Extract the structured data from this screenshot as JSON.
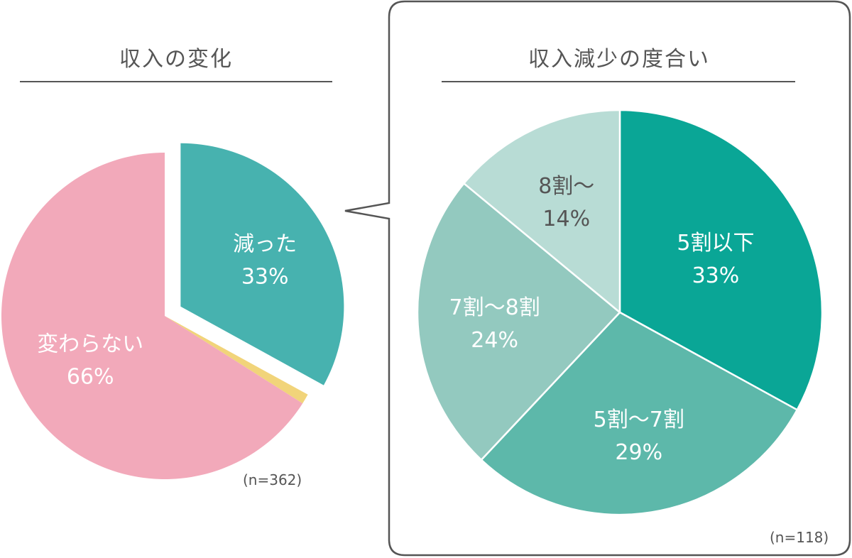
{
  "chart_data": [
    {
      "type": "pie",
      "title": "収入の変化",
      "note": "(n=362)",
      "slices": [
        {
          "name": "減った",
          "value": 33,
          "value_label": "33%",
          "color": "#47b2af",
          "exploded": true
        },
        {
          "name": "",
          "value": 1,
          "value_label": "",
          "color": "#f1d47a",
          "exploded": false
        },
        {
          "name": "変わらない",
          "value": 66,
          "value_label": "66%",
          "color": "#f2a9ba",
          "exploded": false
        }
      ]
    },
    {
      "type": "pie",
      "title": "収入減少の度合い",
      "note": "(n=118)",
      "slices": [
        {
          "name": "5割以下",
          "value": 33,
          "value_label": "33%",
          "color": "#0aa696"
        },
        {
          "name": "5割〜7割",
          "value": 29,
          "value_label": "29%",
          "color": "#5db8aa"
        },
        {
          "name": "7割〜8割",
          "value": 24,
          "value_label": "24%",
          "color": "#93c9bf"
        },
        {
          "name": "8割〜",
          "value": 14,
          "value_label": "14%",
          "color": "#b8dcd5"
        }
      ]
    }
  ],
  "colors": {
    "label_light": "#ffffff",
    "label_dark": "#555555",
    "frame": "#555555",
    "rule": "#555555"
  }
}
